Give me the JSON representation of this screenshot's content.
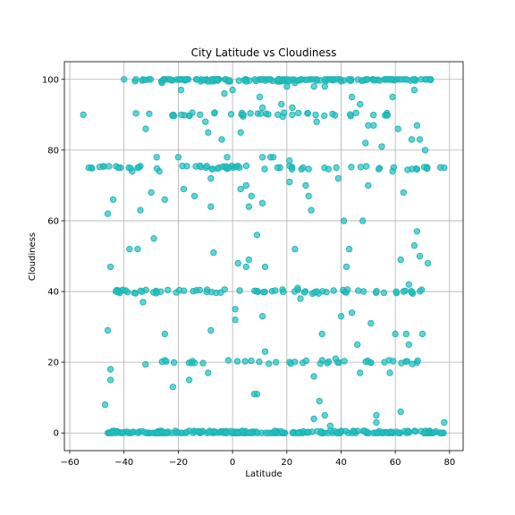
{
  "chart_data": {
    "type": "scatter",
    "title": "City Latitude vs Cloudiness",
    "xlabel": "Latitude",
    "ylabel": "Cloudiness",
    "xlim": [
      -62,
      85
    ],
    "ylim": [
      -5,
      105
    ],
    "xticks": [
      -60,
      -40,
      -20,
      0,
      20,
      40,
      60,
      80
    ],
    "yticks": [
      0,
      20,
      40,
      60,
      80,
      100
    ],
    "grid": true,
    "marker_color": "#20c0c0",
    "marker_edge": "#1fb0b0",
    "seed": 20240515,
    "clusters": [
      {
        "y": 100,
        "lat_min": -36,
        "lat_max": 74,
        "count": 150
      },
      {
        "y": 90,
        "lat_min": -38,
        "lat_max": 58,
        "count": 40
      },
      {
        "y": 75,
        "lat_min": -52,
        "lat_max": 78,
        "count": 60
      },
      {
        "y": 40,
        "lat_min": -43,
        "lat_max": 70,
        "count": 70
      },
      {
        "y": 20,
        "lat_min": -38,
        "lat_max": 70,
        "count": 40
      },
      {
        "y": 0,
        "lat_min": -46,
        "lat_max": 78,
        "count": 230
      }
    ],
    "points": [
      [
        -55,
        90
      ],
      [
        -53,
        75
      ],
      [
        -52,
        75
      ],
      [
        -46,
        62
      ],
      [
        -44,
        66
      ],
      [
        -45,
        47
      ],
      [
        -46,
        29
      ],
      [
        -45,
        18
      ],
      [
        -45,
        15
      ],
      [
        -47,
        8
      ],
      [
        -43,
        40
      ],
      [
        -42,
        75
      ],
      [
        -40,
        100
      ],
      [
        -38,
        52
      ],
      [
        -35,
        52
      ],
      [
        -37,
        74
      ],
      [
        -35,
        75
      ],
      [
        -34,
        63
      ],
      [
        -33,
        37
      ],
      [
        -32,
        86
      ],
      [
        -30,
        68
      ],
      [
        -29,
        55
      ],
      [
        -28,
        78
      ],
      [
        -27,
        74
      ],
      [
        -25,
        66
      ],
      [
        -25,
        28
      ],
      [
        -26,
        99
      ],
      [
        -23,
        100
      ],
      [
        -22,
        13
      ],
      [
        -20,
        78
      ],
      [
        -19,
        97
      ],
      [
        -18,
        69
      ],
      [
        -16,
        15
      ],
      [
        -14,
        67
      ],
      [
        -12,
        90
      ],
      [
        -10,
        88
      ],
      [
        -9,
        85
      ],
      [
        -8,
        72
      ],
      [
        -8,
        64
      ],
      [
        -7,
        51
      ],
      [
        -8,
        29
      ],
      [
        -9,
        17
      ],
      [
        -5,
        75
      ],
      [
        -4,
        83
      ],
      [
        -3,
        96
      ],
      [
        -2,
        78
      ],
      [
        0,
        97
      ],
      [
        1,
        35
      ],
      [
        1,
        32
      ],
      [
        2,
        48
      ],
      [
        3,
        69
      ],
      [
        3,
        85
      ],
      [
        4,
        90
      ],
      [
        5,
        70
      ],
      [
        5,
        47
      ],
      [
        6,
        49
      ],
      [
        6,
        64
      ],
      [
        7,
        67
      ],
      [
        8,
        11
      ],
      [
        9,
        11
      ],
      [
        9,
        56
      ],
      [
        10,
        95
      ],
      [
        11,
        92
      ],
      [
        11,
        78
      ],
      [
        11,
        65
      ],
      [
        11,
        33
      ],
      [
        12,
        47
      ],
      [
        12,
        23
      ],
      [
        14,
        78
      ],
      [
        15,
        78
      ],
      [
        16,
        20
      ],
      [
        17,
        100
      ],
      [
        18,
        93
      ],
      [
        20,
        98
      ],
      [
        21,
        77
      ],
      [
        21,
        71
      ],
      [
        22,
        92
      ],
      [
        22,
        90
      ],
      [
        23,
        99
      ],
      [
        23,
        52
      ],
      [
        24,
        41
      ],
      [
        25,
        38
      ],
      [
        26,
        75
      ],
      [
        27,
        70
      ],
      [
        28,
        67
      ],
      [
        29,
        63
      ],
      [
        30,
        16
      ],
      [
        30,
        4
      ],
      [
        31,
        88
      ],
      [
        32,
        9
      ],
      [
        33,
        28
      ],
      [
        34,
        100
      ],
      [
        34,
        5
      ],
      [
        36,
        2
      ],
      [
        38,
        21
      ],
      [
        39,
        72
      ],
      [
        40,
        33
      ],
      [
        41,
        60
      ],
      [
        43,
        52
      ],
      [
        42,
        47
      ],
      [
        44,
        34
      ],
      [
        46,
        25
      ],
      [
        47,
        17
      ],
      [
        48,
        60
      ],
      [
        49,
        82
      ],
      [
        50,
        70
      ],
      [
        51,
        31
      ],
      [
        53,
        5
      ],
      [
        53,
        3
      ],
      [
        55,
        81
      ],
      [
        56,
        20
      ],
      [
        57,
        100
      ],
      [
        58,
        17
      ],
      [
        59,
        74
      ],
      [
        60,
        28
      ],
      [
        61,
        86
      ],
      [
        62,
        49
      ],
      [
        62,
        6
      ],
      [
        63,
        68
      ],
      [
        64,
        28
      ],
      [
        65,
        25
      ],
      [
        65,
        42
      ],
      [
        66,
        83
      ],
      [
        67,
        53
      ],
      [
        68,
        57
      ],
      [
        68,
        87
      ],
      [
        69,
        50
      ],
      [
        70,
        28
      ],
      [
        71,
        80
      ],
      [
        72,
        48
      ],
      [
        73,
        100
      ],
      [
        78,
        75
      ],
      [
        78,
        3
      ],
      [
        47,
        93
      ],
      [
        44,
        95
      ],
      [
        50,
        87
      ],
      [
        52,
        87
      ],
      [
        31,
        40
      ],
      [
        34,
        98
      ],
      [
        30,
        98
      ],
      [
        59,
        95
      ],
      [
        63,
        40
      ],
      [
        67,
        97
      ],
      [
        69,
        83
      ]
    ]
  }
}
